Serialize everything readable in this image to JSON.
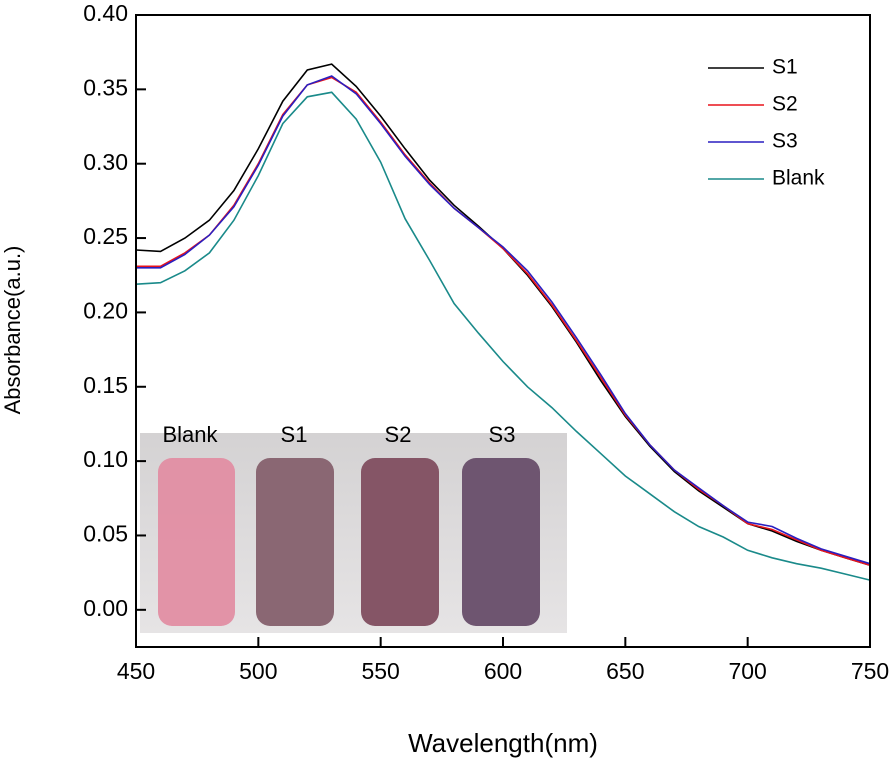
{
  "chart_data": {
    "type": "line",
    "xlabel": "Wavelength(nm)",
    "ylabel": "Absorbance(a.u.)",
    "x": [
      450,
      460,
      470,
      480,
      490,
      500,
      510,
      520,
      530,
      540,
      550,
      560,
      570,
      580,
      590,
      600,
      610,
      620,
      630,
      640,
      650,
      660,
      670,
      680,
      690,
      700,
      710,
      720,
      730,
      740,
      750
    ],
    "series": [
      {
        "name": "S1",
        "color": "#000000",
        "values": [
          0.242,
          0.241,
          0.25,
          0.262,
          0.282,
          0.31,
          0.342,
          0.363,
          0.367,
          0.352,
          0.332,
          0.31,
          0.289,
          0.272,
          0.258,
          0.243,
          0.225,
          0.204,
          0.18,
          0.154,
          0.13,
          0.11,
          0.093,
          0.08,
          0.069,
          0.058,
          0.053,
          0.046,
          0.04,
          0.035,
          0.03
        ]
      },
      {
        "name": "S2",
        "color": "#e8141c",
        "values": [
          0.231,
          0.231,
          0.24,
          0.252,
          0.272,
          0.3,
          0.333,
          0.353,
          0.358,
          0.348,
          0.328,
          0.306,
          0.287,
          0.27,
          0.257,
          0.243,
          0.226,
          0.205,
          0.181,
          0.156,
          0.131,
          0.111,
          0.094,
          0.081,
          0.07,
          0.058,
          0.054,
          0.047,
          0.04,
          0.035,
          0.03
        ]
      },
      {
        "name": "S3",
        "color": "#2a1fc0",
        "values": [
          0.23,
          0.23,
          0.239,
          0.252,
          0.271,
          0.299,
          0.332,
          0.353,
          0.359,
          0.347,
          0.327,
          0.305,
          0.286,
          0.27,
          0.257,
          0.244,
          0.228,
          0.207,
          0.183,
          0.158,
          0.132,
          0.111,
          0.094,
          0.082,
          0.07,
          0.059,
          0.056,
          0.048,
          0.041,
          0.036,
          0.031
        ]
      },
      {
        "name": "Blank",
        "color": "#1a8a8a",
        "values": [
          0.219,
          0.22,
          0.228,
          0.24,
          0.262,
          0.292,
          0.327,
          0.345,
          0.348,
          0.33,
          0.301,
          0.263,
          0.235,
          0.206,
          0.186,
          0.167,
          0.15,
          0.136,
          0.12,
          0.105,
          0.09,
          0.078,
          0.066,
          0.056,
          0.049,
          0.04,
          0.035,
          0.031,
          0.028,
          0.024,
          0.02
        ]
      }
    ],
    "xlim": [
      450,
      750
    ],
    "xticks": [
      450,
      500,
      550,
      600,
      650,
      700,
      750
    ],
    "ylim": [
      -0.025,
      0.4
    ],
    "yticks": [
      {
        "value": 0,
        "label": "0.00"
      },
      0.05,
      {
        "value": 0.1,
        "label": "0.10"
      },
      0.15,
      {
        "value": 0.2,
        "label": "0.20"
      },
      0.25,
      {
        "value": 0.3,
        "label": "0.30"
      },
      0.35,
      {
        "value": 0.4,
        "label": "0.40"
      }
    ],
    "legend_position": "upper right",
    "inset_labels": [
      "Blank",
      "S1",
      "S2",
      "S3"
    ]
  }
}
